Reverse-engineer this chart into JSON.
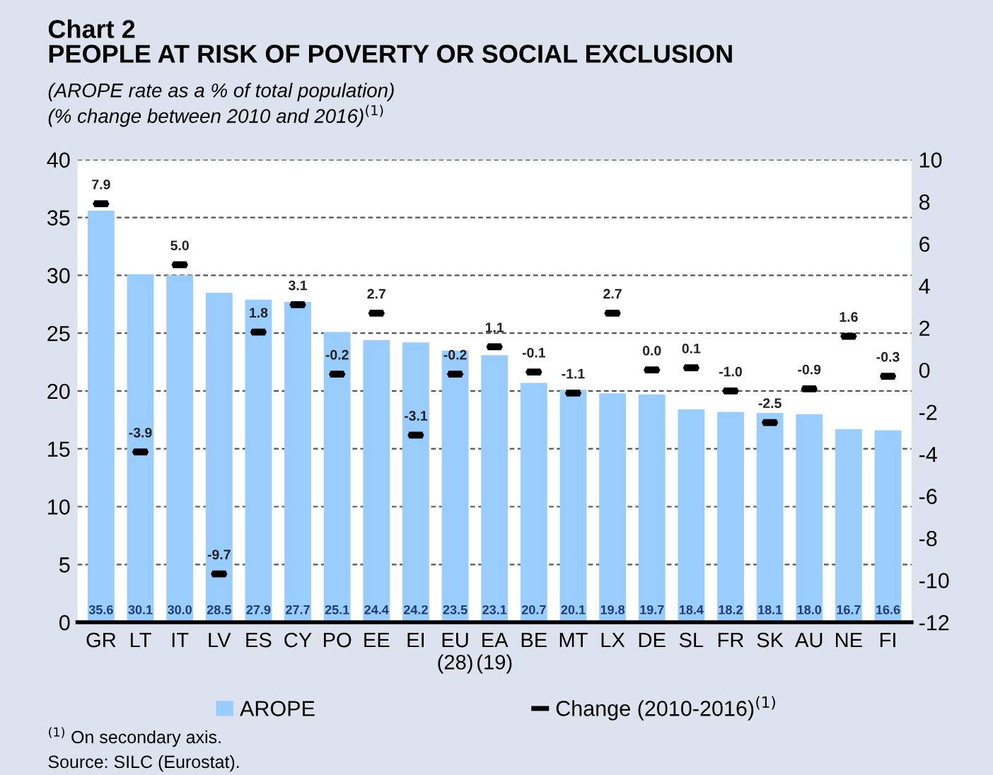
{
  "chart_data": {
    "type": "bar",
    "title": "Chart 2\nPEOPLE AT RISK OF POVERTY OR SOCIAL EXCLUSION",
    "subtitle": "(AROPE rate as a % of total population)\n(% change between 2010 and 2016)$^{(1)}$",
    "categories": [
      "GR",
      "LT",
      "IT",
      "LV",
      "ES",
      "CY",
      "PO",
      "EE",
      "EI",
      "EU\n(28)",
      "EA\n(19)",
      "BE",
      "MT",
      "LX",
      "DE",
      "SL",
      "FR",
      "SK",
      "AU",
      "NE",
      "FI"
    ],
    "series": [
      {
        "name": "AROPE",
        "color": "#99ccff",
        "values": [
          35.6,
          30.1,
          30.0,
          28.5,
          27.9,
          27.7,
          25.1,
          24.4,
          24.2,
          23.5,
          23.1,
          20.7,
          20.1,
          19.8,
          19.7,
          18.4,
          18.2,
          18.1,
          18.0,
          16.7,
          16.6
        ],
        "value_labels": [
          "35.6",
          "30.1",
          "30.0",
          "28.5",
          "27.9",
          "27.7",
          "25.1",
          "24.4",
          "24.2",
          "23.5",
          "23.1",
          "20.7",
          "20.1",
          "19.8",
          "19.7",
          "18.4",
          "18.2",
          "18.1",
          "18.0",
          "16.7",
          "16.6"
        ]
      },
      {
        "name": "Change (2010-2016)$^{(1)}$",
        "type": "scatter",
        "axis": "y2",
        "color": "#000000",
        "values": [
          7.9,
          -3.9,
          5.0,
          -9.7,
          1.8,
          3.1,
          -0.2,
          2.7,
          -3.1,
          -0.2,
          1.1,
          -0.1,
          -1.1,
          2.7,
          0.0,
          0.1,
          -1.0,
          -2.5,
          -0.9,
          1.6,
          -0.3
        ],
        "value_labels": [
          "7.9",
          "-3.9",
          "5.0",
          "-9.7",
          "1.8",
          "3.1",
          "-0.2",
          "2.7",
          "-3.1",
          "-0.2",
          "1.1",
          "-0.1",
          "-1.1",
          "2.7",
          "0.0",
          "0.1",
          "-1.0",
          "-2.5",
          "-0.9",
          "1.6",
          "-0.3"
        ]
      }
    ],
    "ylim": [
      0,
      40
    ],
    "yticks": [
      0,
      5,
      10,
      15,
      20,
      25,
      30,
      35,
      40
    ],
    "y2lim": [
      -12,
      10
    ],
    "y2ticks": [
      -12,
      -10,
      -8,
      -6,
      -4,
      -2,
      0,
      2,
      4,
      6,
      8,
      10
    ],
    "grid": "y",
    "legend": "bottom",
    "annotations": [
      "$^{(1)}$ On secondary axis.",
      "Source: SILC (Eurostat)."
    ]
  }
}
